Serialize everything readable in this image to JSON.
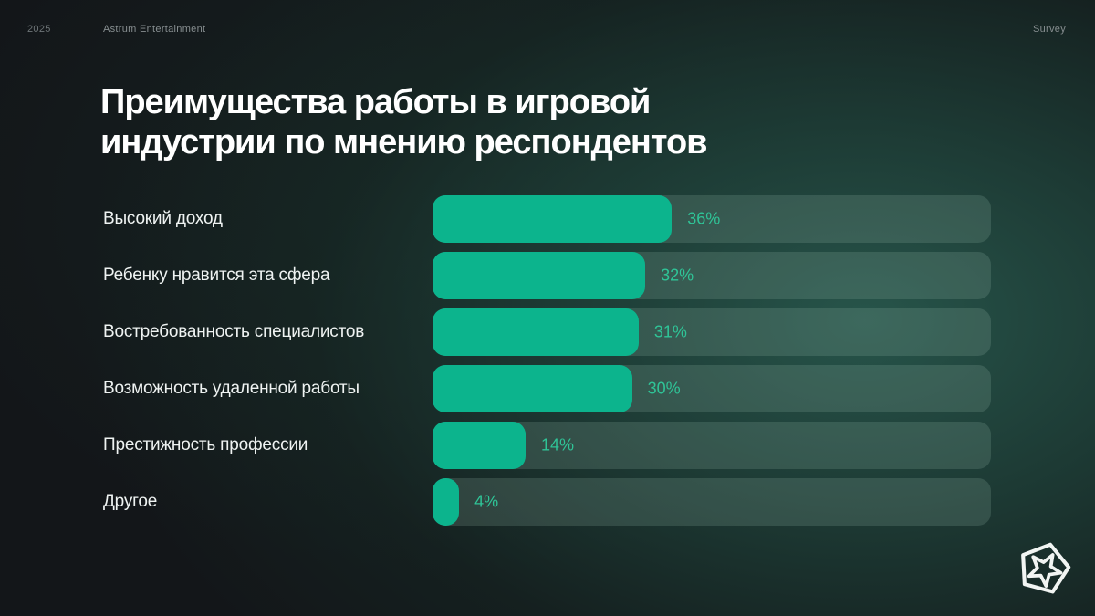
{
  "header": {
    "year": "2025",
    "company": "Astrum Entertainment",
    "tag": "Survey"
  },
  "title": {
    "full": "Преимущества работы в игровой индустрии по мнению респондентов",
    "lines": [
      "Преимущества работы в игровой",
      "индустрии по мнению респондентов"
    ]
  },
  "chart_data": {
    "type": "bar",
    "orientation": "horizontal",
    "title": "Преимущества работы в игровой индустрии по мнению респондентов",
    "categories": [
      "Высокий доход",
      "Ребенку нравится эта сфера",
      "Востребованность специалистов",
      "Возможность удаленной работы",
      "Престижность профессии",
      "Другое"
    ],
    "values": [
      36,
      32,
      31,
      30,
      14,
      4
    ],
    "value_labels": [
      "36%",
      "32%",
      "31%",
      "30%",
      "14%",
      "4%"
    ],
    "unit": "%",
    "xlim": [
      0,
      84
    ],
    "grid": false,
    "legend": false,
    "bar_color": "#0cb48d",
    "track_color": "rgba(148,184,172,0.20)",
    "value_label_color": "#2fc497",
    "category_label_color": "#eff3f2"
  },
  "icons": {
    "logo": "astrum-pentagon-star-logo"
  },
  "colors": {
    "background_base": "#131619",
    "background_glow": "#28584d",
    "title_color": "#ffffff",
    "meta_color": "#878e90"
  }
}
